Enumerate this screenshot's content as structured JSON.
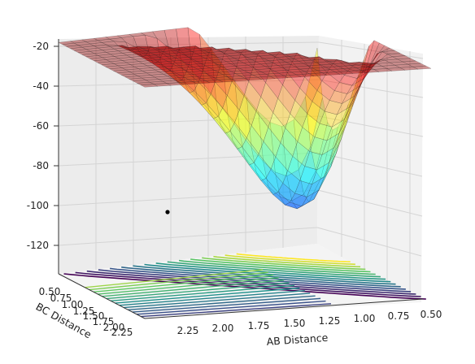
{
  "chart_data": {
    "type": "surface3d",
    "xlabel": "AB Distance",
    "ylabel": "BC Distance",
    "zlabel": "",
    "z_ticks": [
      "-20",
      "-40",
      "-60",
      "-80",
      "-100",
      "-120"
    ],
    "x_ticks": [
      "2.25",
      "2.00",
      "1.75",
      "1.50",
      "1.25",
      "1.00",
      "0.75",
      "0.50"
    ],
    "y_ticks": [
      "0.50",
      "0.75",
      "1.00",
      "1.25",
      "1.50",
      "1.75",
      "2.00",
      "2.25"
    ],
    "zlim": [
      -130,
      -20
    ],
    "xlim": [
      0.5,
      2.3
    ],
    "ylim": [
      0.5,
      2.3
    ],
    "colormap_surface": "jet",
    "colormap_contour": "viridis",
    "grid": true,
    "marker": {
      "ab": 2.3,
      "bc": 2.3,
      "z": -104
    }
  },
  "colors": {
    "pane": "#f2f2f2",
    "grid": "#d6d6d6",
    "marker": "#000000"
  }
}
